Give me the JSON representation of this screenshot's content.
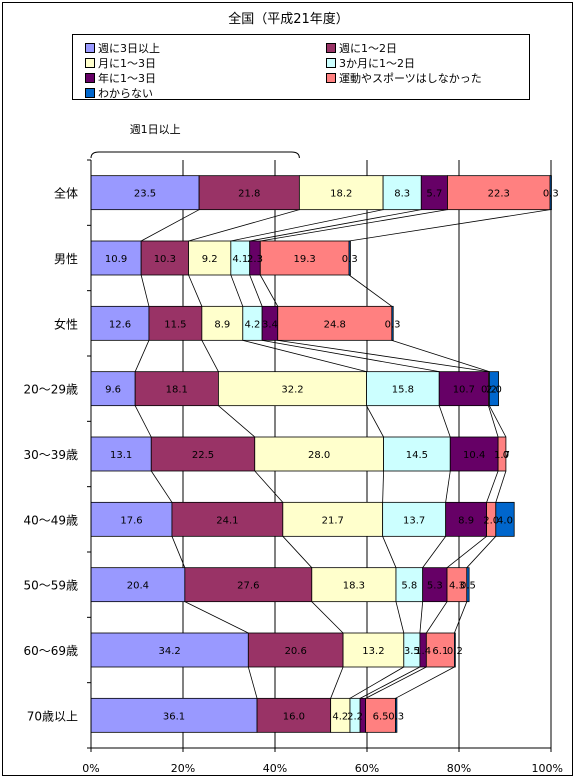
{
  "chart_data": {
    "type": "bar",
    "orientation": "horizontal-stacked-100",
    "title": "全国（平成21年度）",
    "categories": [
      "全体",
      "男性",
      "女性",
      "20～29歳",
      "30～39歳",
      "40～49歳",
      "50～59歳",
      "60～69歳",
      "70歳以上"
    ],
    "series": [
      {
        "name": "週に3日以上",
        "color": "#9999FF",
        "values": [
          23.5,
          10.9,
          12.6,
          9.6,
          13.1,
          17.6,
          20.4,
          34.2,
          36.1
        ]
      },
      {
        "name": "週に1～2日",
        "color": "#993366",
        "values": [
          21.8,
          10.3,
          11.5,
          18.1,
          22.5,
          24.1,
          27.6,
          20.6,
          16.0
        ]
      },
      {
        "name": "月に1～3日",
        "color": "#FFFFCC",
        "values": [
          18.2,
          9.2,
          8.9,
          32.2,
          28.0,
          21.7,
          18.3,
          13.2,
          4.2
        ]
      },
      {
        "name": "3か月に1～2日",
        "color": "#CCFFFF",
        "values": [
          8.3,
          4.1,
          4.2,
          15.8,
          14.5,
          13.7,
          5.8,
          3.5,
          2.2
        ]
      },
      {
        "name": "年に1～3日",
        "color": "#660066",
        "values": [
          5.7,
          2.3,
          3.4,
          10.7,
          10.4,
          8.9,
          5.3,
          1.4,
          1.2
        ]
      },
      {
        "name": "運動やスポーツはしなかった",
        "color": "#FF8080",
        "values": [
          22.3,
          19.3,
          24.8,
          0.2,
          1.7,
          2.0,
          4.3,
          6.1,
          6.5
        ]
      },
      {
        "name": "わからない",
        "color": "#0066CC",
        "values": [
          0.3,
          0.3,
          0.3,
          2.0,
          0.0,
          4.0,
          0.5,
          0.2,
          0.3
        ]
      }
    ],
    "labels": [
      [
        "23.5",
        "21.8",
        "18.2",
        "8.3",
        "5.7",
        "22.3",
        "0.3"
      ],
      [
        "10.9",
        "10.3",
        "9.2",
        "4.1",
        "2.3",
        "19.3",
        "0.3"
      ],
      [
        "12.6",
        "11.5",
        "8.9",
        "4.2",
        "3.4",
        "24.8",
        "0.3"
      ],
      [
        "9.6",
        "18.1",
        "32.2",
        "15.8",
        "10.7",
        "0.2",
        "2.0"
      ],
      [
        "13.1",
        "22.5",
        "28.0",
        "14.5",
        "10.4",
        "1.7",
        "0"
      ],
      [
        "17.6",
        "24.1",
        "21.7",
        "13.7",
        "8.9",
        "2.0",
        "4.0"
      ],
      [
        "20.4",
        "27.6",
        "18.3",
        "5.8",
        "5.3",
        "4.3",
        "0.5"
      ],
      [
        "34.2",
        "20.6",
        "13.2",
        "3.5",
        "1.4",
        "6.1",
        "0.2"
      ],
      [
        "36.1",
        "16.0",
        "4.2",
        "2.2",
        "",
        "6.5",
        "0.3"
      ]
    ],
    "xticks": [
      "0%",
      "20%",
      "40%",
      "60%",
      "80%",
      "100%"
    ],
    "xlim": [
      0,
      100
    ],
    "annotation": "週1日以上",
    "grid": true,
    "legend_position": "top"
  }
}
